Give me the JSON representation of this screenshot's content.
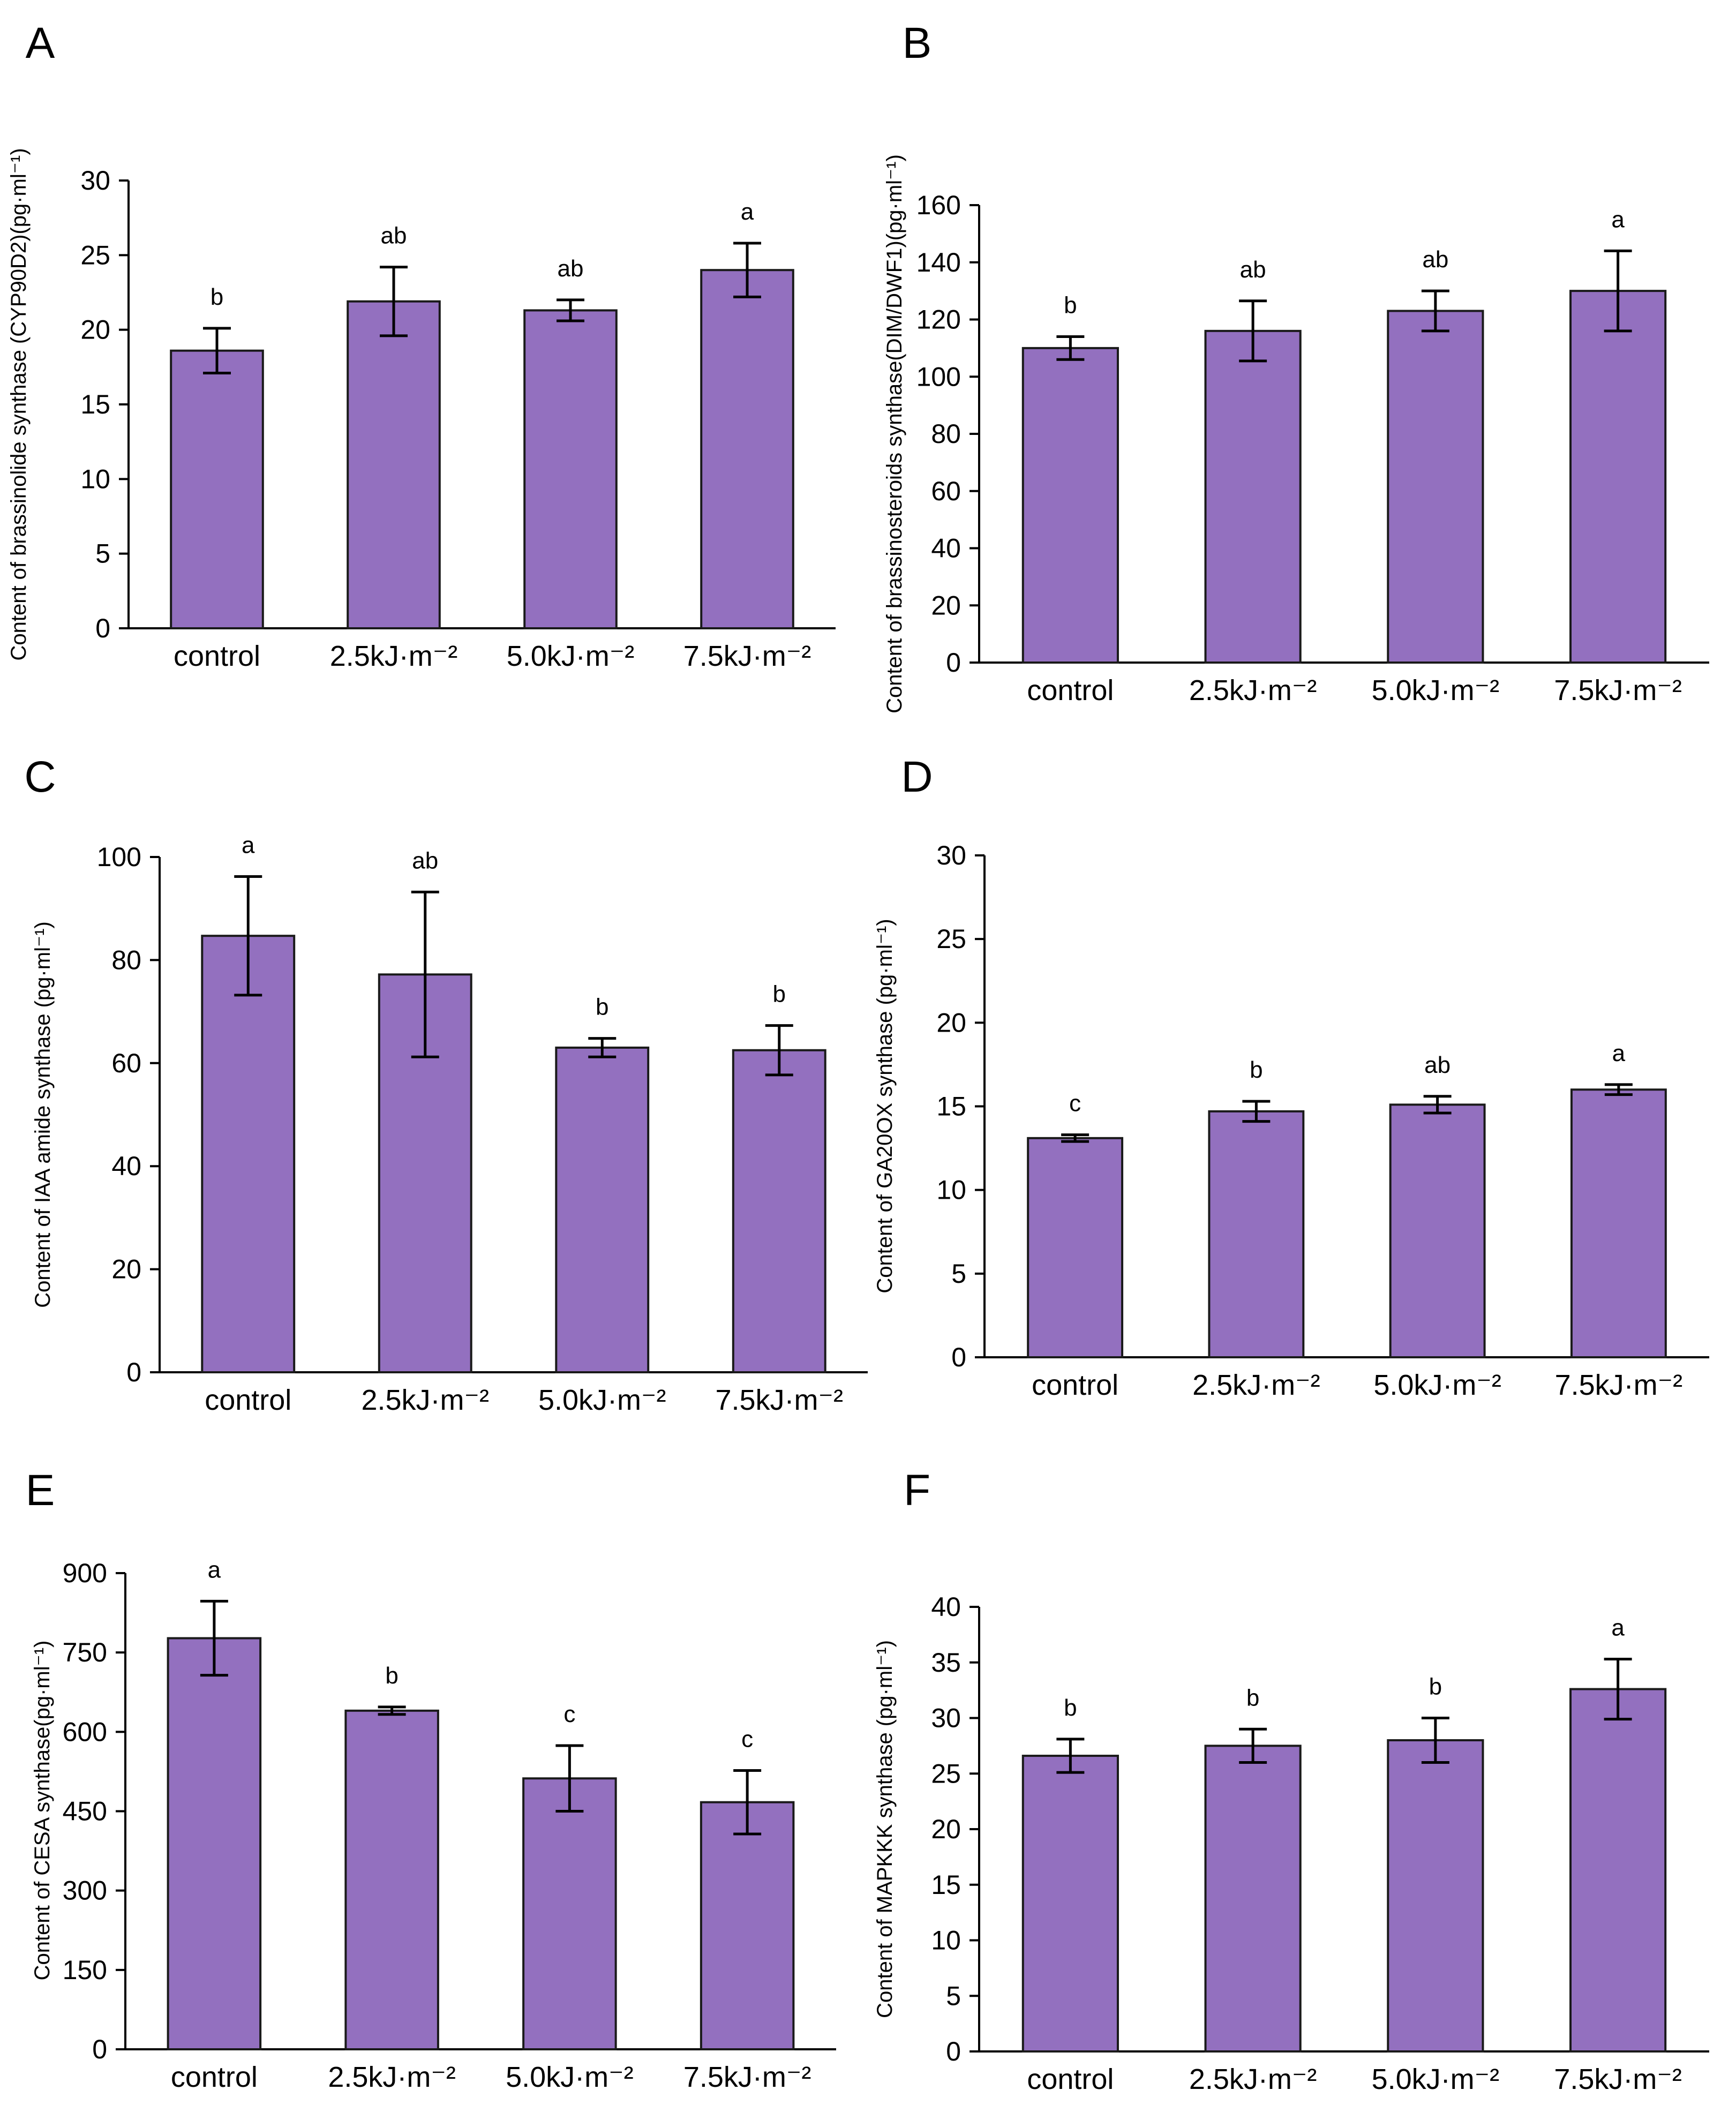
{
  "chart_data": [
    {
      "panel": "A",
      "type": "bar",
      "ylabel": "Content of brassinolide synthase (CYP90D2)(pg·ml⁻¹)",
      "ylim": [
        0,
        30
      ],
      "yticks": [
        0,
        5,
        10,
        15,
        20,
        25,
        30
      ],
      "categories": [
        "control",
        "2.5kJ·m⁻²",
        "5.0kJ·m⁻²",
        "7.5kJ·m⁻²"
      ],
      "values": [
        18.6,
        21.9,
        21.3,
        24.0
      ],
      "errors": [
        1.5,
        2.3,
        0.7,
        1.8
      ],
      "significance": [
        "b",
        "ab",
        "ab",
        "a"
      ]
    },
    {
      "panel": "B",
      "type": "bar",
      "ylabel": "Content of brassinosteroids synthase(DIM/DWF1)(pg·ml⁻¹)",
      "ylim": [
        0,
        160
      ],
      "yticks": [
        0,
        20,
        40,
        60,
        80,
        100,
        120,
        140,
        160
      ],
      "categories": [
        "control",
        "2.5kJ·m⁻²",
        "5.0kJ·m⁻²",
        "7.5kJ·m⁻²"
      ],
      "values": [
        110,
        116,
        123,
        130
      ],
      "errors": [
        4,
        10.5,
        7,
        14
      ],
      "significance": [
        "b",
        "ab",
        "ab",
        "a"
      ]
    },
    {
      "panel": "C",
      "type": "bar",
      "ylabel": "Content of IAA amide synthase (pg·ml⁻¹)",
      "ylim": [
        0,
        100
      ],
      "yticks": [
        0,
        20,
        40,
        60,
        80,
        100
      ],
      "categories": [
        "control",
        "2.5kJ·m⁻²",
        "5.0kJ·m⁻²",
        "7.5kJ·m⁻²"
      ],
      "values": [
        84.7,
        77.2,
        63.0,
        62.5
      ],
      "errors": [
        11.5,
        16,
        1.8,
        4.8
      ],
      "significance": [
        "a",
        "ab",
        "b",
        "b"
      ]
    },
    {
      "panel": "D",
      "type": "bar",
      "ylabel": "Content of GA20OX synthase (pg·ml⁻¹)",
      "ylim": [
        0,
        30
      ],
      "yticks": [
        0,
        5,
        10,
        15,
        20,
        25,
        30
      ],
      "categories": [
        "control",
        "2.5kJ·m⁻²",
        "5.0kJ·m⁻²",
        "7.5kJ·m⁻²"
      ],
      "values": [
        13.1,
        14.7,
        15.1,
        16.0
      ],
      "errors": [
        0.2,
        0.6,
        0.5,
        0.3
      ],
      "significance": [
        "c",
        "b",
        "ab",
        "a"
      ]
    },
    {
      "panel": "E",
      "type": "bar",
      "ylabel": "Content of CESA synthase(pg·ml⁻¹)",
      "ylim": [
        0,
        900
      ],
      "yticks": [
        0,
        150,
        300,
        450,
        600,
        750,
        900
      ],
      "categories": [
        "control",
        "2.5kJ·m⁻²",
        "5.0kJ·m⁻²",
        "7.5kJ·m⁻²"
      ],
      "values": [
        777,
        640,
        512,
        467
      ],
      "errors": [
        70,
        7,
        62,
        60
      ],
      "significance": [
        "a",
        "b",
        "c",
        "c"
      ]
    },
    {
      "panel": "F",
      "type": "bar",
      "ylabel": "Content of MAPKKK synthase (pg·ml⁻¹)",
      "ylim": [
        0,
        40
      ],
      "yticks": [
        0,
        5,
        10,
        15,
        20,
        25,
        30,
        35,
        40
      ],
      "categories": [
        "control",
        "2.5kJ·m⁻²",
        "5.0kJ·m⁻²",
        "7.5kJ·m⁻²"
      ],
      "values": [
        26.6,
        27.5,
        28.0,
        32.6
      ],
      "errors": [
        1.5,
        1.5,
        2.0,
        2.7
      ],
      "significance": [
        "b",
        "b",
        "b",
        "a"
      ]
    }
  ],
  "colors": {
    "bar_fill": "#9370bf",
    "bar_stroke": "#1a1a1a"
  }
}
